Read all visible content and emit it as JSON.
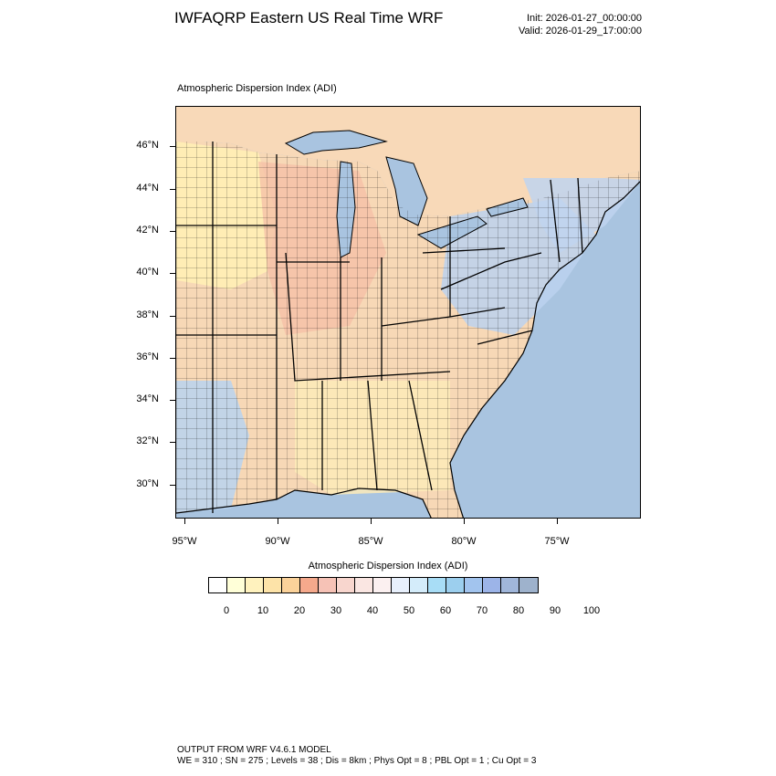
{
  "header": {
    "title": "IWFAQRP Eastern US Real Time WRF",
    "init": "Init: 2026-01-27_00:00:00",
    "valid": "Valid: 2026-01-29_17:00:00"
  },
  "map": {
    "subtitle": "Atmospheric Dispersion Index   (ADI)",
    "lat_labels": [
      "46°N",
      "44°N",
      "42°N",
      "40°N",
      "38°N",
      "36°N",
      "34°N",
      "32°N",
      "30°N"
    ],
    "lon_labels": [
      "95°W",
      "90°W",
      "85°W",
      "80°W",
      "75°W"
    ],
    "colors": {
      "ocean": "#a9c4e0",
      "land_low": "#fff3b8",
      "land_mid": "#f5c6a8",
      "land_high": "#b8d4f0",
      "borders": "#000000"
    }
  },
  "colorbar": {
    "title": "Atmospheric Dispersion Index  (ADI)",
    "labels": [
      "0",
      "10",
      "20",
      "30",
      "40",
      "50",
      "60",
      "70",
      "80",
      "90",
      "100"
    ],
    "colors": [
      "#ffffff",
      "#ffffd8",
      "#fff2be",
      "#fde3a8",
      "#fbd29a",
      "#f5a98c",
      "#f6c2b6",
      "#f8d6ce",
      "#fae6e2",
      "#fbf0f0",
      "#e8f0fc",
      "#d4ecfa",
      "#a8ddf6",
      "#9ccfee",
      "#a2c4ee",
      "#9cb4e8",
      "#a0b6da",
      "#9eb2cc"
    ]
  },
  "footer": {
    "line1": "OUTPUT FROM WRF V4.6.1 MODEL",
    "line2": "WE = 310 ; SN = 275 ; Levels = 38 ; Dis = 8km ; Phys Opt = 8 ; PBL Opt = 1 ; Cu Opt = 3"
  }
}
